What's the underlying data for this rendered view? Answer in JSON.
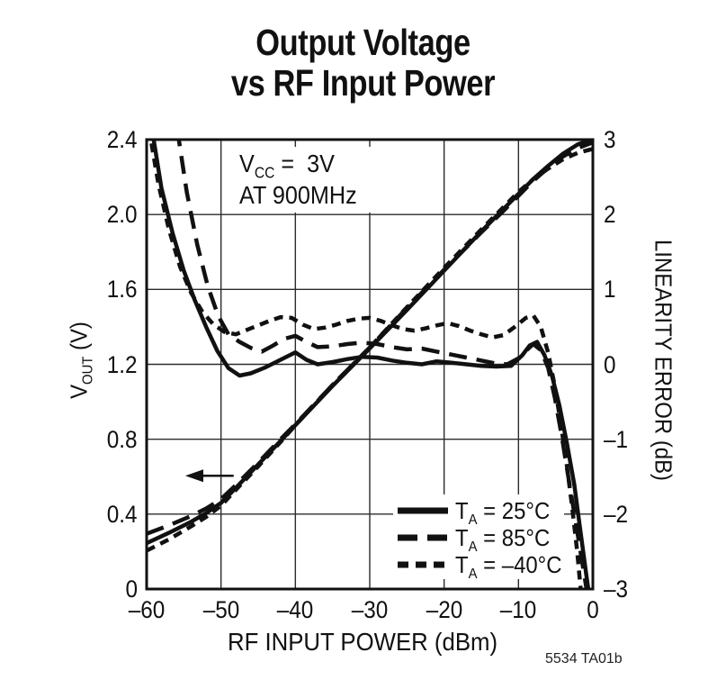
{
  "chart_data": {
    "type": "line",
    "title_lines": [
      "Output Voltage",
      "vs RF Input Power"
    ],
    "note": "5534 TA01b",
    "grid": true,
    "legend_position": "lower right",
    "x_axis": {
      "label": "RF INPUT POWER (dBm)",
      "min": -60,
      "max": 0,
      "ticks": [
        -60,
        -50,
        -40,
        -30,
        -20,
        -10,
        0
      ],
      "tick_labels": [
        "–60",
        "–50",
        "–40",
        "–30",
        "–20",
        "–10",
        "0"
      ]
    },
    "y_left": {
      "label_pre": "V",
      "label_sub": "OUT",
      "label_rest": " (V)",
      "min": 0,
      "max": 2.4,
      "ticks": [
        2.4,
        2.0,
        1.6,
        1.2,
        0.8,
        0.4,
        0
      ],
      "tick_labels": [
        "2.4",
        "2.0",
        "1.6",
        "1.2",
        "0.8",
        "0.4",
        "0"
      ]
    },
    "y_right": {
      "label": "LINEARITY ERROR (dB)",
      "min": -3,
      "max": 3,
      "ticks": [
        3,
        2,
        1,
        0,
        -1,
        -2,
        -3
      ],
      "tick_labels": [
        "3",
        "2",
        "1",
        "0",
        "–1",
        "–2",
        "–3"
      ]
    },
    "conditions": {
      "l1_pre": "V",
      "l1_sub": "CC",
      "l1_rest": " =  3V",
      "line2": "AT 900MHz"
    },
    "legend": {
      "items": [
        {
          "pre": "T",
          "sub": "A",
          "rest": " = 25°C",
          "style": "solid"
        },
        {
          "pre": "T",
          "sub": "A",
          "rest": " = 85°C",
          "style": "long-dash"
        },
        {
          "pre": "T",
          "sub": "A",
          "rest": " = –40°C",
          "style": "short-dash"
        }
      ]
    },
    "arrow": {
      "x_tail": -48.3,
      "x_tip": -54.8,
      "at_v": 0.605,
      "axis": "left",
      "direction": "left"
    },
    "series": [
      {
        "name": "Linearity error, TA = 25°C",
        "axis": "right",
        "style": "solid",
        "points": [
          [
            -59.3,
            3.15
          ],
          [
            -58,
            2.35
          ],
          [
            -56.5,
            1.75
          ],
          [
            -55,
            1.25
          ],
          [
            -53.5,
            0.85
          ],
          [
            -52,
            0.5
          ],
          [
            -50.5,
            0.18
          ],
          [
            -49,
            -0.05
          ],
          [
            -47.5,
            -0.15
          ],
          [
            -46,
            -0.12
          ],
          [
            -44,
            -0.04
          ],
          [
            -42,
            0.06
          ],
          [
            -40,
            0.16
          ],
          [
            -38.5,
            0.06
          ],
          [
            -37,
            0
          ],
          [
            -35,
            0.03
          ],
          [
            -33,
            0.07
          ],
          [
            -31,
            0.1
          ],
          [
            -29,
            0.09
          ],
          [
            -27,
            0.05
          ],
          [
            -25,
            0.02
          ],
          [
            -23,
            0
          ],
          [
            -21,
            0.04
          ],
          [
            -19,
            0.02
          ],
          [
            -17,
            0
          ],
          [
            -15,
            -0.02
          ],
          [
            -13,
            -0.03
          ],
          [
            -11,
            -0.02
          ],
          [
            -9.5,
            0.12
          ],
          [
            -8.5,
            0.25
          ],
          [
            -7.5,
            0.3
          ],
          [
            -6.5,
            0.12
          ],
          [
            -5.5,
            -0.15
          ],
          [
            -4.5,
            -0.55
          ],
          [
            -3.5,
            -1.05
          ],
          [
            -2.5,
            -1.6
          ],
          [
            -1.7,
            -2.2
          ],
          [
            -0.9,
            -2.8
          ],
          [
            -0.4,
            -3.15
          ]
        ]
      },
      {
        "name": "Linearity error, TA = 85°C",
        "axis": "right",
        "style": "long-dash",
        "points": [
          [
            -55.9,
            3.15
          ],
          [
            -54.6,
            2.3
          ],
          [
            -53.2,
            1.6
          ],
          [
            -51.8,
            1.05
          ],
          [
            -50.4,
            0.65
          ],
          [
            -49,
            0.4
          ],
          [
            -47.5,
            0.3
          ],
          [
            -46,
            0.22
          ],
          [
            -44.5,
            0.17
          ],
          [
            -43,
            0.25
          ],
          [
            -41.5,
            0.34
          ],
          [
            -40,
            0.38
          ],
          [
            -38.5,
            0.3
          ],
          [
            -37,
            0.23
          ],
          [
            -35,
            0.24
          ],
          [
            -33,
            0.27
          ],
          [
            -31,
            0.29
          ],
          [
            -29,
            0.27
          ],
          [
            -27,
            0.23
          ],
          [
            -25,
            0.2
          ],
          [
            -23,
            0.21
          ],
          [
            -21,
            0.17
          ],
          [
            -19,
            0.13
          ],
          [
            -17,
            0.09
          ],
          [
            -15,
            0.05
          ],
          [
            -13,
            0.01
          ],
          [
            -11.5,
            0
          ],
          [
            -10,
            0.08
          ],
          [
            -9,
            0.18
          ],
          [
            -8,
            0.27
          ],
          [
            -7,
            0.19
          ],
          [
            -6,
            -0.05
          ],
          [
            -5.1,
            -0.45
          ],
          [
            -4.2,
            -0.95
          ],
          [
            -3.3,
            -1.5
          ],
          [
            -2.4,
            -2.05
          ],
          [
            -1.5,
            -2.6
          ],
          [
            -0.6,
            -3.15
          ]
        ]
      },
      {
        "name": "Linearity error, TA = –40°C",
        "axis": "right",
        "style": "short-dash",
        "points": [
          [
            -59.7,
            3.15
          ],
          [
            -58.4,
            2.4
          ],
          [
            -57,
            1.8
          ],
          [
            -55.5,
            1.3
          ],
          [
            -54,
            0.95
          ],
          [
            -52.5,
            0.7
          ],
          [
            -51,
            0.53
          ],
          [
            -49.5,
            0.43
          ],
          [
            -48,
            0.4
          ],
          [
            -46.5,
            0.46
          ],
          [
            -45,
            0.52
          ],
          [
            -43.5,
            0.58
          ],
          [
            -42,
            0.63
          ],
          [
            -40.5,
            0.62
          ],
          [
            -39,
            0.53
          ],
          [
            -37.5,
            0.47
          ],
          [
            -36,
            0.49
          ],
          [
            -34.5,
            0.53
          ],
          [
            -33,
            0.58
          ],
          [
            -31.5,
            0.61
          ],
          [
            -30,
            0.62
          ],
          [
            -28.5,
            0.58
          ],
          [
            -27,
            0.52
          ],
          [
            -25.5,
            0.47
          ],
          [
            -24,
            0.45
          ],
          [
            -22.5,
            0.48
          ],
          [
            -21,
            0.52
          ],
          [
            -19.5,
            0.55
          ],
          [
            -18,
            0.51
          ],
          [
            -16.5,
            0.45
          ],
          [
            -15,
            0.4
          ],
          [
            -13.5,
            0.36
          ],
          [
            -12,
            0.39
          ],
          [
            -10.5,
            0.5
          ],
          [
            -9,
            0.62
          ],
          [
            -8,
            0.65
          ],
          [
            -7,
            0.5
          ],
          [
            -6,
            0.15
          ],
          [
            -5.1,
            -0.3
          ],
          [
            -4.3,
            -0.8
          ],
          [
            -3.5,
            -1.35
          ],
          [
            -2.8,
            -1.9
          ],
          [
            -2.1,
            -2.5
          ],
          [
            -1.5,
            -3.15
          ]
        ]
      },
      {
        "name": "VOUT, TA = 25°C",
        "axis": "left",
        "style": "solid",
        "points": [
          [
            -60,
            0.245
          ],
          [
            -57,
            0.3
          ],
          [
            -54,
            0.36
          ],
          [
            -52,
            0.405
          ],
          [
            -50,
            0.46
          ],
          [
            -48,
            0.54
          ],
          [
            -45,
            0.665
          ],
          [
            -42,
            0.79
          ],
          [
            -40,
            0.875
          ],
          [
            -35,
            1.085
          ],
          [
            -30,
            1.285
          ],
          [
            -25,
            1.49
          ],
          [
            -20,
            1.7
          ],
          [
            -15,
            1.91
          ],
          [
            -12,
            2.03
          ],
          [
            -10,
            2.11
          ],
          [
            -8,
            2.19
          ],
          [
            -6,
            2.26
          ],
          [
            -4,
            2.325
          ],
          [
            -2,
            2.375
          ],
          [
            0,
            2.4
          ]
        ]
      },
      {
        "name": "VOUT, TA = 85°C",
        "axis": "left",
        "style": "long-dash",
        "points": [
          [
            -60,
            0.295
          ],
          [
            -57,
            0.34
          ],
          [
            -54,
            0.39
          ],
          [
            -52,
            0.43
          ],
          [
            -50,
            0.48
          ],
          [
            -48,
            0.555
          ],
          [
            -45,
            0.675
          ],
          [
            -42,
            0.8
          ],
          [
            -40,
            0.88
          ],
          [
            -35,
            1.09
          ],
          [
            -30,
            1.29
          ],
          [
            -25,
            1.5
          ],
          [
            -20,
            1.705
          ],
          [
            -15,
            1.905
          ],
          [
            -12,
            2.02
          ],
          [
            -10,
            2.1
          ],
          [
            -8,
            2.18
          ],
          [
            -6,
            2.25
          ],
          [
            -4,
            2.31
          ],
          [
            -2,
            2.355
          ],
          [
            0,
            2.385
          ]
        ]
      },
      {
        "name": "VOUT, TA = –40°C",
        "axis": "left",
        "style": "short-dash",
        "points": [
          [
            -60,
            0.205
          ],
          [
            -57,
            0.265
          ],
          [
            -54,
            0.335
          ],
          [
            -52,
            0.385
          ],
          [
            -50,
            0.445
          ],
          [
            -48,
            0.53
          ],
          [
            -45,
            0.655
          ],
          [
            -42,
            0.785
          ],
          [
            -40,
            0.875
          ],
          [
            -35,
            1.09
          ],
          [
            -30,
            1.29
          ],
          [
            -25,
            1.505
          ],
          [
            -20,
            1.715
          ],
          [
            -15,
            1.92
          ],
          [
            -12,
            2.04
          ],
          [
            -10,
            2.12
          ],
          [
            -8,
            2.19
          ],
          [
            -6,
            2.245
          ],
          [
            -4,
            2.295
          ],
          [
            -2,
            2.33
          ],
          [
            0,
            2.35
          ]
        ]
      }
    ]
  }
}
